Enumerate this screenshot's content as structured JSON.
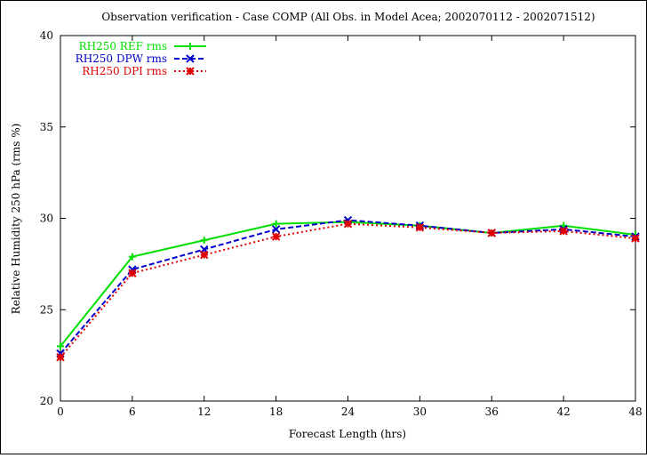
{
  "chart_data": {
    "type": "line",
    "title": "Observation verification - Case COMP (All Obs. in Model Acea; 2002070112 - 2002071512)",
    "xlabel": "Forecast Length (hrs)",
    "ylabel": "Relative Humidity 250 hPa (rms %)",
    "x": [
      0,
      6,
      12,
      18,
      24,
      30,
      36,
      42,
      48
    ],
    "xlim": [
      0,
      48
    ],
    "ylim": [
      20,
      40
    ],
    "xticks": [
      0,
      6,
      12,
      18,
      24,
      30,
      36,
      42,
      48
    ],
    "yticks": [
      20,
      25,
      30,
      35,
      40
    ],
    "grid": false,
    "legend_position": "top-left",
    "series": [
      {
        "name": "RH250 REF rms",
        "color": "#00e000",
        "dash": "solid",
        "marker": "plus",
        "values": [
          23.0,
          27.9,
          28.8,
          29.7,
          29.8,
          29.6,
          29.2,
          29.6,
          29.1
        ]
      },
      {
        "name": "RH250 DPW rms",
        "color": "#0000cc",
        "dash": "dashed",
        "marker": "cross",
        "values": [
          22.6,
          27.2,
          28.3,
          29.4,
          29.9,
          29.6,
          29.2,
          29.4,
          29.0
        ]
      },
      {
        "name": "RH250 DPI rms",
        "color": "#e00000",
        "dash": "dotted",
        "marker": "star",
        "values": [
          22.4,
          27.0,
          28.0,
          29.0,
          29.7,
          29.5,
          29.2,
          29.3,
          28.9
        ]
      }
    ]
  }
}
